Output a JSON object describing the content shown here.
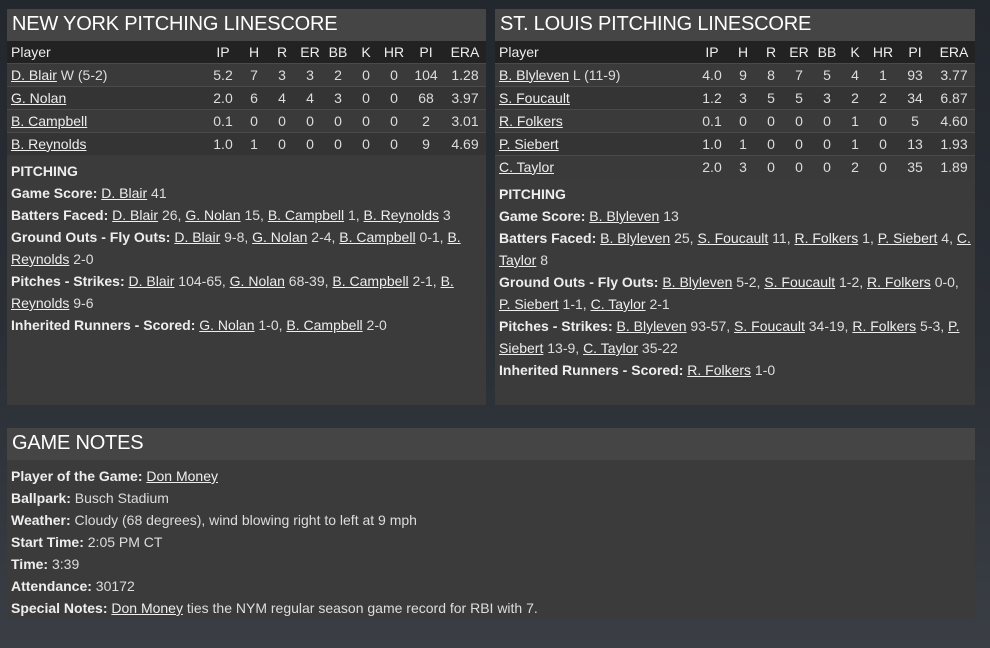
{
  "columns": [
    "Player",
    "IP",
    "H",
    "R",
    "ER",
    "BB",
    "K",
    "HR",
    "PI",
    "ERA"
  ],
  "ny": {
    "title": "NEW YORK PITCHING LINESCORE",
    "rows": [
      {
        "name": "D. Blair",
        "note": " W (5-2)",
        "stats": [
          "5.2",
          "7",
          "3",
          "3",
          "2",
          "0",
          "0",
          "104",
          "1.28"
        ]
      },
      {
        "name": "G. Nolan",
        "note": "",
        "stats": [
          "2.0",
          "6",
          "4",
          "4",
          "3",
          "0",
          "0",
          "68",
          "3.97"
        ]
      },
      {
        "name": "B. Campbell",
        "note": "",
        "stats": [
          "0.1",
          "0",
          "0",
          "0",
          "0",
          "0",
          "0",
          "2",
          "3.01"
        ]
      },
      {
        "name": "B. Reynolds",
        "note": "",
        "stats": [
          "1.0",
          "1",
          "0",
          "0",
          "0",
          "0",
          "0",
          "9",
          "4.69"
        ]
      }
    ],
    "section": "PITCHING",
    "lines": [
      {
        "label": "Game Score:",
        "segs": [
          {
            "l": "D. Blair"
          },
          {
            "t": " 41"
          }
        ]
      },
      {
        "label": "Batters Faced:",
        "segs": [
          {
            "l": "D. Blair"
          },
          {
            "t": " 26, "
          },
          {
            "l": "G. Nolan"
          },
          {
            "t": " 15, "
          },
          {
            "l": "B. Campbell"
          },
          {
            "t": " 1, "
          },
          {
            "l": "B. Reynolds"
          },
          {
            "t": " 3"
          }
        ]
      },
      {
        "label": "Ground Outs - Fly Outs:",
        "segs": [
          {
            "l": "D. Blair"
          },
          {
            "t": " 9-8, "
          },
          {
            "l": "G. Nolan"
          },
          {
            "t": " 2-4, "
          },
          {
            "l": "B. Campbell"
          },
          {
            "t": " 0-1, "
          },
          {
            "l": "B. Reynolds"
          },
          {
            "t": " 2-0"
          }
        ]
      },
      {
        "label": "Pitches - Strikes:",
        "segs": [
          {
            "l": "D. Blair"
          },
          {
            "t": " 104-65, "
          },
          {
            "l": "G. Nolan"
          },
          {
            "t": " 68-39, "
          },
          {
            "l": "B. Campbell"
          },
          {
            "t": " 2-1, "
          },
          {
            "l": "B. Reynolds"
          },
          {
            "t": " 9-6"
          }
        ]
      },
      {
        "label": "Inherited Runners - Scored:",
        "segs": [
          {
            "l": "G. Nolan"
          },
          {
            "t": " 1-0, "
          },
          {
            "l": "B. Campbell"
          },
          {
            "t": " 2-0"
          }
        ]
      }
    ]
  },
  "stl": {
    "title": "ST. LOUIS PITCHING LINESCORE",
    "rows": [
      {
        "name": "B. Blyleven",
        "note": " L (11-9)",
        "stats": [
          "4.0",
          "9",
          "8",
          "7",
          "5",
          "4",
          "1",
          "93",
          "3.77"
        ]
      },
      {
        "name": "S. Foucault",
        "note": "",
        "stats": [
          "1.2",
          "3",
          "5",
          "5",
          "3",
          "2",
          "2",
          "34",
          "6.87"
        ]
      },
      {
        "name": "R. Folkers",
        "note": "",
        "stats": [
          "0.1",
          "0",
          "0",
          "0",
          "0",
          "1",
          "0",
          "5",
          "4.60"
        ]
      },
      {
        "name": "P. Siebert",
        "note": "",
        "stats": [
          "1.0",
          "1",
          "0",
          "0",
          "0",
          "1",
          "0",
          "13",
          "1.93"
        ]
      },
      {
        "name": "C. Taylor",
        "note": "",
        "stats": [
          "2.0",
          "3",
          "0",
          "0",
          "0",
          "2",
          "0",
          "35",
          "1.89"
        ]
      }
    ],
    "section": "PITCHING",
    "lines": [
      {
        "label": "Game Score:",
        "segs": [
          {
            "l": "B. Blyleven"
          },
          {
            "t": " 13"
          }
        ]
      },
      {
        "label": "Batters Faced:",
        "segs": [
          {
            "l": "B. Blyleven"
          },
          {
            "t": " 25, "
          },
          {
            "l": "S. Foucault"
          },
          {
            "t": " 11, "
          },
          {
            "l": "R. Folkers"
          },
          {
            "t": " 1, "
          },
          {
            "l": "P. Siebert"
          },
          {
            "t": " 4, "
          },
          {
            "l": "C. Taylor"
          },
          {
            "t": " 8"
          }
        ]
      },
      {
        "label": "Ground Outs - Fly Outs:",
        "segs": [
          {
            "l": "B. Blyleven"
          },
          {
            "t": " 5-2, "
          },
          {
            "l": "S. Foucault"
          },
          {
            "t": " 1-2, "
          },
          {
            "l": "R. Folkers"
          },
          {
            "t": " 0-0, "
          },
          {
            "l": "P. Siebert"
          },
          {
            "t": " 1-1, "
          },
          {
            "l": "C. Taylor"
          },
          {
            "t": " 2-1"
          }
        ]
      },
      {
        "label": "Pitches - Strikes:",
        "segs": [
          {
            "l": "B. Blyleven"
          },
          {
            "t": " 93-57, "
          },
          {
            "l": "S. Foucault"
          },
          {
            "t": " 34-19, "
          },
          {
            "l": "R. Folkers"
          },
          {
            "t": " 5-3, "
          },
          {
            "l": "P. Siebert"
          },
          {
            "t": " 13-9, "
          },
          {
            "l": "C. Taylor"
          },
          {
            "t": " 35-22"
          }
        ]
      },
      {
        "label": "Inherited Runners - Scored:",
        "segs": [
          {
            "l": "R. Folkers"
          },
          {
            "t": " 1-0"
          }
        ]
      }
    ]
  },
  "notes": {
    "title": "GAME NOTES",
    "lines": [
      {
        "label": "Player of the Game:",
        "segs": [
          {
            "t": " "
          },
          {
            "l": "Don Money"
          }
        ]
      },
      {
        "label": "Ballpark:",
        "segs": [
          {
            "t": " Busch Stadium"
          }
        ]
      },
      {
        "label": "Weather:",
        "segs": [
          {
            "t": " Cloudy (68 degrees), wind blowing right to left at 9 mph"
          }
        ]
      },
      {
        "label": "Start Time:",
        "segs": [
          {
            "t": " 2:05 PM CT"
          }
        ]
      },
      {
        "label": "Time:",
        "segs": [
          {
            "t": " 3:39"
          }
        ]
      },
      {
        "label": "Attendance:",
        "segs": [
          {
            "t": " 30172"
          }
        ]
      },
      {
        "label": "Special Notes:",
        "segs": [
          {
            "t": " "
          },
          {
            "l": "Don Money"
          },
          {
            "t": " ties the NYM regular season game record for RBI with 7."
          }
        ]
      }
    ]
  }
}
